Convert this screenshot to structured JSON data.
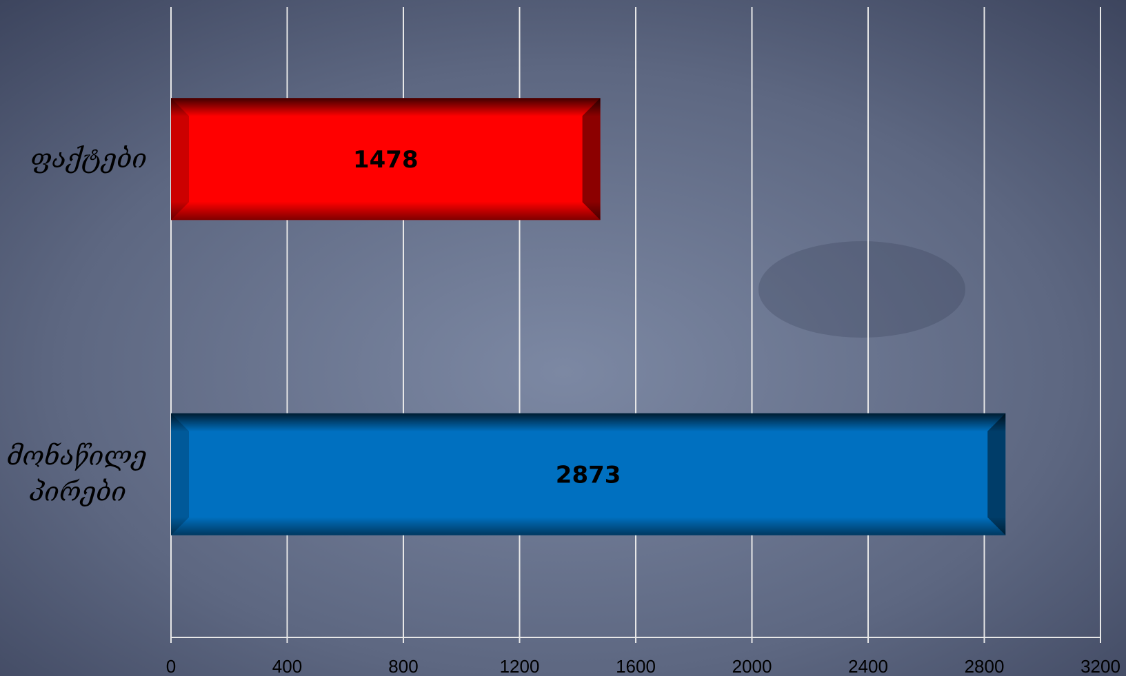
{
  "chart_data": {
    "type": "barh",
    "categories": [
      "ფაქტები",
      "მონაწილე პირები"
    ],
    "series": [
      {
        "name": null,
        "colors": [
          "#ff0000",
          "#0070c0"
        ],
        "values": [
          1478,
          2873
        ]
      }
    ],
    "xlim": [
      0,
      3200
    ],
    "xticks": [
      0,
      400,
      800,
      1200,
      1600,
      2000,
      2400,
      2800,
      3200
    ],
    "grid": true
  }
}
